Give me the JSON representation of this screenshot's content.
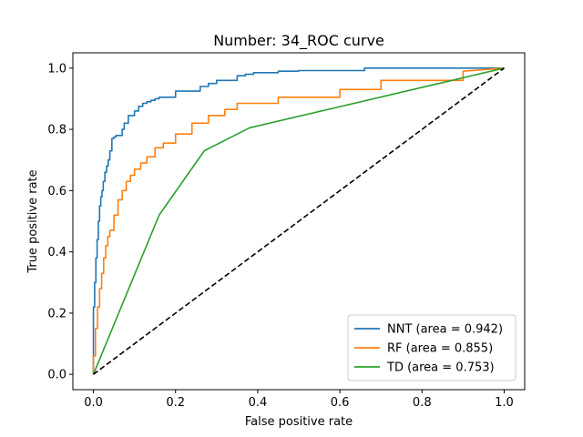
{
  "chart_data": {
    "type": "line",
    "title": "Number: 34_ROC curve",
    "xlabel": "False positive rate",
    "ylabel": "True positive rate",
    "xlim": [
      -0.05,
      1.05
    ],
    "ylim": [
      -0.05,
      1.05
    ],
    "xticks": [
      "0.0",
      "0.2",
      "0.4",
      "0.6",
      "0.8",
      "1.0"
    ],
    "yticks": [
      "0.0",
      "0.2",
      "0.4",
      "0.6",
      "0.8",
      "1.0"
    ],
    "grid": false,
    "legend_position": "lower right",
    "diagonal": {
      "x": [
        0,
        1
      ],
      "y": [
        0,
        1
      ],
      "color": "#000000",
      "style": "dashed"
    },
    "series": [
      {
        "name": "NNT (area = 0.942)",
        "color": "#1f77b4",
        "x": [
          0.0,
          0.0,
          0.003,
          0.003,
          0.006,
          0.006,
          0.009,
          0.009,
          0.012,
          0.012,
          0.015,
          0.015,
          0.018,
          0.018,
          0.021,
          0.021,
          0.024,
          0.024,
          0.028,
          0.028,
          0.032,
          0.032,
          0.036,
          0.036,
          0.04,
          0.04,
          0.045,
          0.045,
          0.05,
          0.05,
          0.055,
          0.055,
          0.07,
          0.07,
          0.075,
          0.075,
          0.085,
          0.085,
          0.1,
          0.1,
          0.11,
          0.11,
          0.12,
          0.12,
          0.13,
          0.13,
          0.14,
          0.14,
          0.15,
          0.15,
          0.16,
          0.16,
          0.2,
          0.2,
          0.26,
          0.26,
          0.28,
          0.28,
          0.3,
          0.3,
          0.35,
          0.35,
          0.37,
          0.37,
          0.39,
          0.39,
          0.45,
          0.45,
          0.5,
          0.5,
          0.66,
          0.66,
          0.9,
          0.9,
          1.0
        ],
        "y": [
          0.0,
          0.22,
          0.22,
          0.3,
          0.3,
          0.38,
          0.38,
          0.44,
          0.44,
          0.5,
          0.5,
          0.55,
          0.55,
          0.58,
          0.58,
          0.6,
          0.6,
          0.63,
          0.63,
          0.66,
          0.66,
          0.68,
          0.68,
          0.7,
          0.7,
          0.73,
          0.73,
          0.77,
          0.77,
          0.775,
          0.775,
          0.78,
          0.78,
          0.8,
          0.8,
          0.82,
          0.82,
          0.845,
          0.845,
          0.86,
          0.86,
          0.875,
          0.875,
          0.885,
          0.885,
          0.89,
          0.89,
          0.895,
          0.895,
          0.9,
          0.9,
          0.905,
          0.905,
          0.925,
          0.925,
          0.94,
          0.94,
          0.95,
          0.95,
          0.96,
          0.96,
          0.975,
          0.975,
          0.98,
          0.98,
          0.985,
          0.985,
          0.99,
          0.99,
          0.992,
          0.992,
          1.0,
          1.0,
          1.0,
          1.0
        ]
      },
      {
        "name": "RF (area = 0.855)",
        "color": "#ff7f0e",
        "x": [
          0.0,
          0.0,
          0.005,
          0.005,
          0.01,
          0.01,
          0.015,
          0.015,
          0.02,
          0.02,
          0.025,
          0.025,
          0.03,
          0.03,
          0.035,
          0.035,
          0.04,
          0.04,
          0.05,
          0.05,
          0.06,
          0.06,
          0.07,
          0.07,
          0.08,
          0.08,
          0.09,
          0.09,
          0.1,
          0.1,
          0.115,
          0.115,
          0.13,
          0.13,
          0.15,
          0.15,
          0.17,
          0.17,
          0.2,
          0.2,
          0.24,
          0.24,
          0.28,
          0.28,
          0.32,
          0.32,
          0.35,
          0.35,
          0.45,
          0.45,
          0.6,
          0.6,
          0.7,
          0.7,
          0.9,
          0.9,
          1.0
        ],
        "y": [
          0.0,
          0.06,
          0.06,
          0.15,
          0.15,
          0.22,
          0.22,
          0.28,
          0.28,
          0.33,
          0.33,
          0.38,
          0.38,
          0.42,
          0.42,
          0.45,
          0.45,
          0.47,
          0.47,
          0.52,
          0.52,
          0.57,
          0.57,
          0.6,
          0.6,
          0.63,
          0.63,
          0.65,
          0.65,
          0.67,
          0.67,
          0.69,
          0.69,
          0.71,
          0.71,
          0.74,
          0.74,
          0.755,
          0.755,
          0.785,
          0.785,
          0.82,
          0.82,
          0.845,
          0.845,
          0.865,
          0.865,
          0.885,
          0.885,
          0.905,
          0.905,
          0.93,
          0.93,
          0.96,
          0.96,
          0.99,
          1.0
        ]
      },
      {
        "name": "TD (area = 0.753)",
        "color": "#2ca02c",
        "x": [
          0.0,
          0.16,
          0.27,
          0.38,
          1.0
        ],
        "y": [
          0.0,
          0.52,
          0.73,
          0.805,
          1.0
        ]
      }
    ]
  }
}
